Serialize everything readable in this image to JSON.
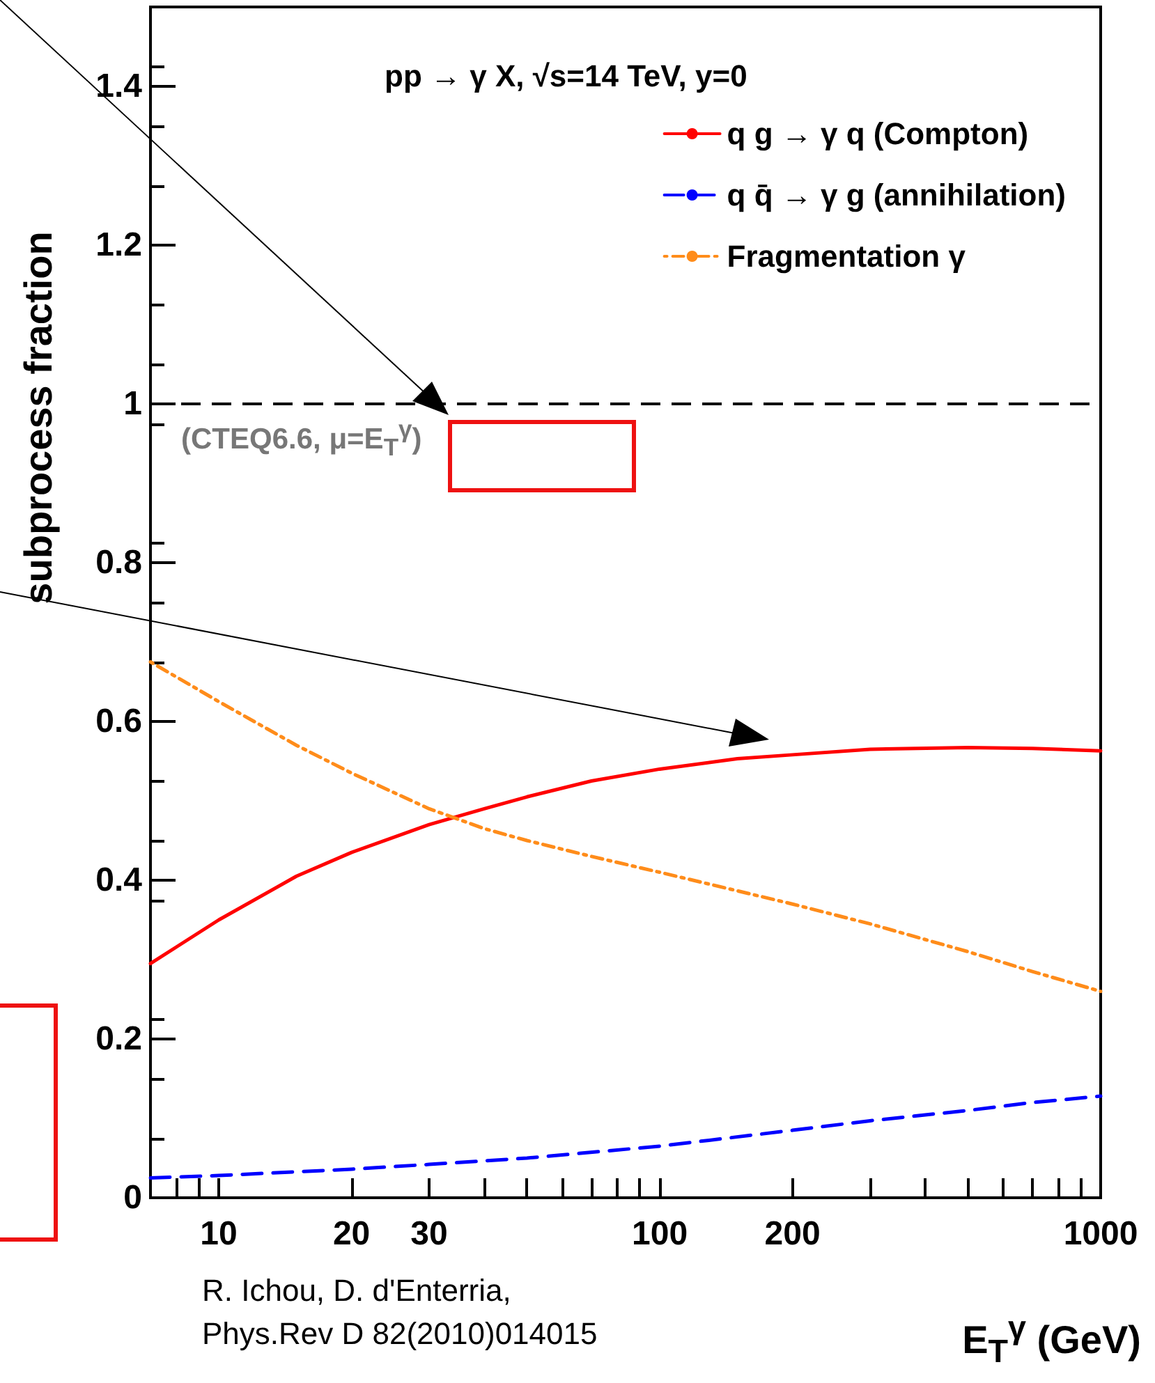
{
  "chart_data": {
    "type": "line",
    "xlabel": "E$_{T}$$^{γ}$ (GeV)",
    "ylabel": "subprocess fraction",
    "legend_title": "pp → γ X, √s=14 TeV, y=0",
    "log": "x",
    "xlim": [
      7,
      1000
    ],
    "ylim": [
      0,
      1.5
    ],
    "xticks": [
      {
        "value": 8,
        "label": null
      },
      {
        "value": 9,
        "label": null
      },
      10,
      20,
      30,
      {
        "value": 40,
        "label": null
      },
      {
        "value": 50,
        "label": null
      },
      {
        "value": 60,
        "label": null
      },
      {
        "value": 70,
        "label": null
      },
      {
        "value": 80,
        "label": null
      },
      {
        "value": 90,
        "label": null
      },
      100,
      200,
      {
        "value": 300,
        "label": null
      },
      {
        "value": 400,
        "label": null
      },
      {
        "value": 500,
        "label": null
      },
      {
        "value": 600,
        "label": null
      },
      {
        "value": 700,
        "label": null
      },
      {
        "value": 800,
        "label": null
      },
      {
        "value": 900,
        "label": null
      },
      1000
    ],
    "yticks": [
      0,
      0.2,
      0.4,
      0.6,
      0.8,
      1,
      1.2,
      1.4
    ],
    "legend": "top right",
    "grid": false,
    "series": [
      {
        "name": "q g → γ q (Compton)",
        "color": "#ff0000",
        "line_style": "solid",
        "x": [
          7,
          10,
          15,
          20,
          30,
          40,
          50,
          70,
          100,
          150,
          200,
          300,
          500,
          700,
          1000
        ],
        "values": [
          0.295,
          0.35,
          0.405,
          0.435,
          0.47,
          0.49,
          0.505,
          0.525,
          0.54,
          0.553,
          0.558,
          0.565,
          0.567,
          0.566,
          0.563
        ]
      },
      {
        "name": "q q̄ → γ g (annihilation)",
        "color": "#0000ff",
        "line_style": "dashed",
        "x": [
          7,
          10,
          20,
          30,
          50,
          100,
          200,
          300,
          500,
          700,
          1000
        ],
        "values": [
          0.025,
          0.028,
          0.036,
          0.042,
          0.05,
          0.065,
          0.085,
          0.097,
          0.11,
          0.12,
          0.128
        ]
      },
      {
        "name": "Fragmentation γ",
        "color": "#ff8c1a",
        "line_style": "dotted",
        "x": [
          7,
          10,
          15,
          20,
          30,
          40,
          50,
          70,
          100,
          200,
          300,
          500,
          700,
          1000
        ],
        "values": [
          0.675,
          0.625,
          0.57,
          0.535,
          0.49,
          0.465,
          0.45,
          0.43,
          0.41,
          0.37,
          0.345,
          0.31,
          0.285,
          0.26
        ]
      }
    ],
    "ref_lines": [
      {
        "axis": "y",
        "value": 1,
        "color": "#000000",
        "line_style": "dashed"
      }
    ],
    "annotations": [
      "(CTEQ6.6, μ=E$_{T}$$^{γ}$)",
      "R. Ichou, D. d'Enterria,\nPhys.Rev D 82(2010)014015"
    ]
  }
}
